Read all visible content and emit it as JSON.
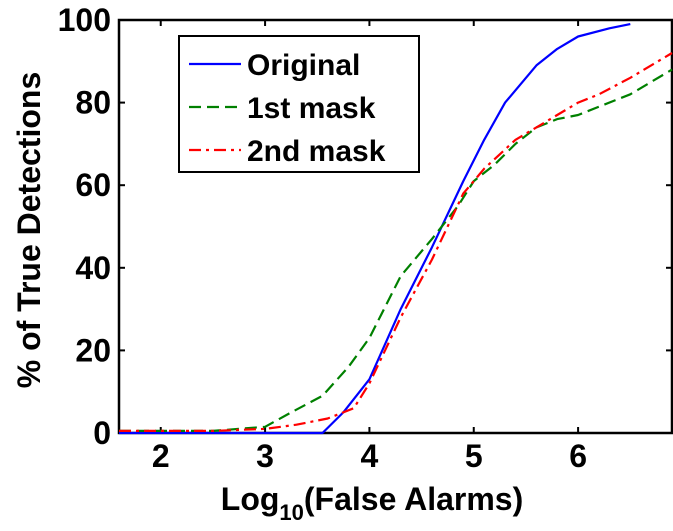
{
  "chart_data": {
    "type": "line",
    "xlabel_main": "Log",
    "xlabel_sub": "10",
    "xlabel_rest": "(False Alarms)",
    "ylabel": "% of True Detections",
    "xlim": [
      1.6,
      6.9
    ],
    "ylim": [
      0,
      100
    ],
    "xticks": [
      2,
      3,
      4,
      5,
      6
    ],
    "yticks": [
      0,
      20,
      40,
      60,
      80,
      100
    ],
    "legend_position": "top-left",
    "series": [
      {
        "name": "Original",
        "color": "#0000ff",
        "style": "solid",
        "x": [
          1.6,
          3.0,
          3.55,
          3.75,
          4.0,
          4.3,
          4.6,
          4.9,
          5.1,
          5.3,
          5.6,
          5.8,
          6.0,
          6.3,
          6.5
        ],
        "y": [
          0,
          0,
          0,
          5,
          13,
          30,
          45,
          61,
          71,
          80,
          89,
          93,
          96,
          98,
          99
        ]
      },
      {
        "name": "1st mask",
        "color": "#008000",
        "style": "dashed",
        "x": [
          1.6,
          2.5,
          3.0,
          3.25,
          3.55,
          3.8,
          4.0,
          4.3,
          4.6,
          4.85,
          5.0,
          5.2,
          5.4,
          5.6,
          5.8,
          6.0,
          6.2,
          6.5,
          6.9
        ],
        "y": [
          0.5,
          0.5,
          1.5,
          5,
          9,
          16,
          23,
          38,
          47,
          55,
          61,
          65,
          70,
          74,
          76,
          77,
          79,
          82,
          88
        ]
      },
      {
        "name": "2nd mask",
        "color": "#ff0000",
        "style": "dashdot",
        "x": [
          1.6,
          2.5,
          3.0,
          3.3,
          3.6,
          3.85,
          4.0,
          4.3,
          4.6,
          4.9,
          5.1,
          5.4,
          5.6,
          5.8,
          6.0,
          6.2,
          6.5,
          6.9
        ],
        "y": [
          0.5,
          0.5,
          1,
          2,
          3.5,
          6,
          12,
          28,
          42,
          58,
          64,
          71,
          74,
          77,
          80,
          82,
          86,
          92
        ]
      }
    ]
  }
}
